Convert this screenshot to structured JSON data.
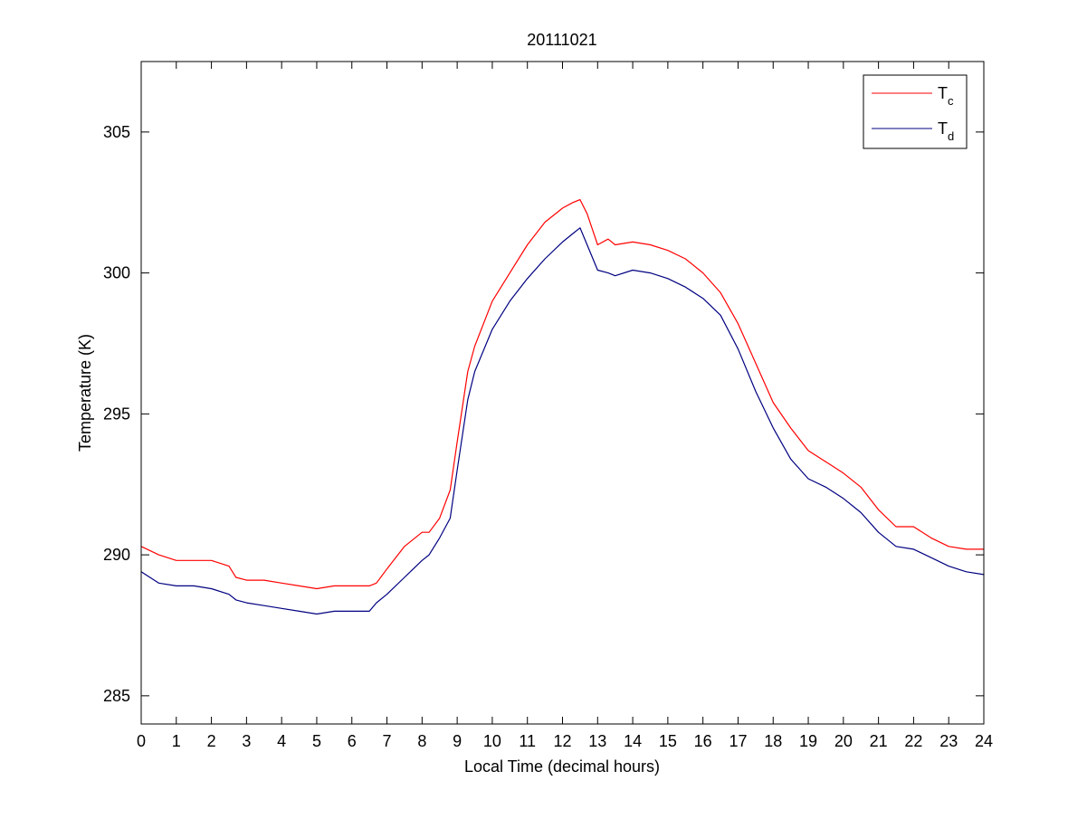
{
  "chart_data": {
    "type": "line",
    "title": "20111021",
    "xlabel": "Local Time (decimal hours)",
    "ylabel": "Temperature (K)",
    "xlim": [
      0,
      24
    ],
    "ylim": [
      284,
      307.5
    ],
    "xticks": [
      "0",
      "1",
      "2",
      "3",
      "4",
      "5",
      "6",
      "7",
      "8",
      "9",
      "10",
      "11",
      "12",
      "13",
      "14",
      "15",
      "16",
      "17",
      "18",
      "19",
      "20",
      "21",
      "22",
      "23",
      "24"
    ],
    "yticks": [
      "285",
      "290",
      "295",
      "300",
      "305"
    ],
    "grid": false,
    "legend_position": "top-right",
    "series": [
      {
        "name": "T",
        "subscript": "c",
        "color": "#ff0000",
        "x": [
          0,
          0.5,
          1,
          1.5,
          2,
          2.5,
          2.7,
          3,
          3.5,
          4,
          4.5,
          5,
          5.5,
          6,
          6.5,
          6.7,
          7,
          7.5,
          8,
          8.2,
          8.5,
          8.8,
          9,
          9.3,
          9.5,
          10,
          10.5,
          11,
          11.5,
          12,
          12.3,
          12.5,
          12.7,
          13,
          13.3,
          13.5,
          14,
          14.5,
          15,
          15.5,
          16,
          16.5,
          17,
          17.5,
          18,
          18.5,
          19,
          19.5,
          20,
          20.5,
          21,
          21.5,
          22,
          22.5,
          23,
          23.5,
          24
        ],
        "y": [
          290.3,
          290.0,
          289.8,
          289.8,
          289.8,
          289.6,
          289.2,
          289.1,
          289.1,
          289.0,
          288.9,
          288.8,
          288.9,
          288.9,
          288.9,
          289.0,
          289.5,
          290.3,
          290.8,
          290.8,
          291.3,
          292.3,
          294.0,
          296.5,
          297.4,
          299.0,
          300.0,
          301.0,
          301.8,
          302.3,
          302.5,
          302.6,
          302.1,
          301.0,
          301.2,
          301.0,
          301.1,
          301.0,
          300.8,
          300.5,
          300.0,
          299.3,
          298.2,
          296.8,
          295.4,
          294.5,
          293.7,
          293.3,
          292.9,
          292.4,
          291.6,
          291.0,
          291.0,
          290.6,
          290.3,
          290.2,
          290.2
        ]
      },
      {
        "name": "T",
        "subscript": "d",
        "color": "#000080",
        "x": [
          0,
          0.5,
          1,
          1.5,
          2,
          2.5,
          2.7,
          3,
          3.5,
          4,
          4.5,
          5,
          5.5,
          6,
          6.5,
          6.7,
          7,
          7.5,
          8,
          8.2,
          8.5,
          8.8,
          9,
          9.3,
          9.5,
          10,
          10.5,
          11,
          11.5,
          12,
          12.3,
          12.5,
          12.7,
          13,
          13.3,
          13.5,
          14,
          14.5,
          15,
          15.5,
          16,
          16.5,
          17,
          17.5,
          18,
          18.5,
          19,
          19.5,
          20,
          20.5,
          21,
          21.5,
          22,
          22.5,
          23,
          23.5,
          24
        ],
        "y": [
          289.4,
          289.0,
          288.9,
          288.9,
          288.8,
          288.6,
          288.4,
          288.3,
          288.2,
          288.1,
          288.0,
          287.9,
          288.0,
          288.0,
          288.0,
          288.3,
          288.6,
          289.2,
          289.8,
          290.0,
          290.6,
          291.3,
          293.0,
          295.5,
          296.5,
          298.0,
          299.0,
          299.8,
          300.5,
          301.1,
          301.4,
          301.6,
          301.0,
          300.1,
          300.0,
          299.9,
          300.1,
          300.0,
          299.8,
          299.5,
          299.1,
          298.5,
          297.3,
          295.8,
          294.5,
          293.4,
          292.7,
          292.4,
          292.0,
          291.5,
          290.8,
          290.3,
          290.2,
          289.9,
          289.6,
          289.4,
          289.3
        ]
      }
    ]
  }
}
